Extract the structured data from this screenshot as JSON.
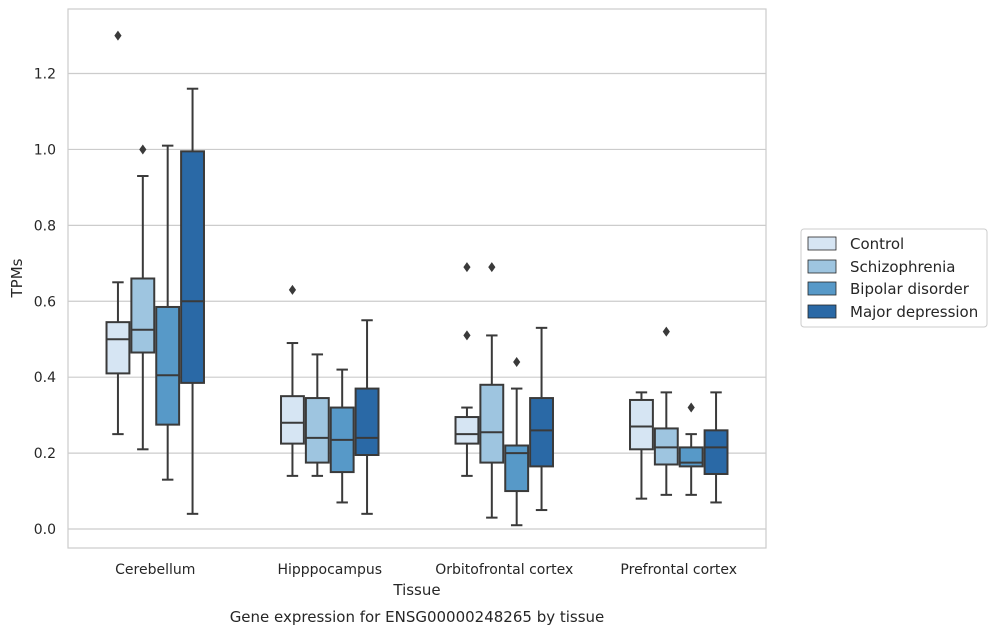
{
  "chart_data": {
    "type": "box",
    "title": "",
    "caption": "Gene expression for ENSG00000248265 by tissue",
    "xlabel": "Tissue",
    "ylabel": "TPMs",
    "ylim": [
      -0.05,
      1.37
    ],
    "yticks": [
      0.0,
      0.2,
      0.4,
      0.6,
      0.8,
      1.0,
      1.2
    ],
    "ytick_labels": [
      "0.0",
      "0.2",
      "0.4",
      "0.6",
      "0.8",
      "1.0",
      "1.2"
    ],
    "grid": true,
    "legend_position": "right, outside plot",
    "categories": [
      "Cerebellum",
      "Hipppocampus",
      "Orbitofrontal cortex",
      "Prefrontal cortex"
    ],
    "series": [
      {
        "name": "Control",
        "color": "#d6e5f3",
        "boxes": [
          {
            "whisker_low": 0.25,
            "q1": 0.41,
            "median": 0.5,
            "q3": 0.545,
            "whisker_high": 0.65,
            "outliers": [
              1.3
            ]
          },
          {
            "whisker_low": 0.14,
            "q1": 0.225,
            "median": 0.28,
            "q3": 0.35,
            "whisker_high": 0.49,
            "outliers": [
              0.63
            ]
          },
          {
            "whisker_low": 0.14,
            "q1": 0.225,
            "median": 0.25,
            "q3": 0.295,
            "whisker_high": 0.32,
            "outliers": [
              0.51,
              0.69
            ]
          },
          {
            "whisker_low": 0.08,
            "q1": 0.21,
            "median": 0.27,
            "q3": 0.34,
            "whisker_high": 0.36,
            "outliers": []
          }
        ]
      },
      {
        "name": "Schizophrenia",
        "color": "#9ec5e0",
        "boxes": [
          {
            "whisker_low": 0.21,
            "q1": 0.465,
            "median": 0.525,
            "q3": 0.66,
            "whisker_high": 0.93,
            "outliers": [
              1.0
            ]
          },
          {
            "whisker_low": 0.14,
            "q1": 0.175,
            "median": 0.24,
            "q3": 0.345,
            "whisker_high": 0.46,
            "outliers": []
          },
          {
            "whisker_low": 0.03,
            "q1": 0.175,
            "median": 0.255,
            "q3": 0.38,
            "whisker_high": 0.51,
            "outliers": [
              0.69
            ]
          },
          {
            "whisker_low": 0.09,
            "q1": 0.17,
            "median": 0.215,
            "q3": 0.265,
            "whisker_high": 0.36,
            "outliers": [
              0.52
            ]
          }
        ]
      },
      {
        "name": "Bipolar disorder",
        "color": "#5799c8",
        "boxes": [
          {
            "whisker_low": 0.13,
            "q1": 0.275,
            "median": 0.405,
            "q3": 0.585,
            "whisker_high": 1.01,
            "outliers": []
          },
          {
            "whisker_low": 0.07,
            "q1": 0.15,
            "median": 0.235,
            "q3": 0.32,
            "whisker_high": 0.42,
            "outliers": []
          },
          {
            "whisker_low": 0.01,
            "q1": 0.1,
            "median": 0.2,
            "q3": 0.22,
            "whisker_high": 0.37,
            "outliers": [
              0.44
            ]
          },
          {
            "whisker_low": 0.09,
            "q1": 0.165,
            "median": 0.175,
            "q3": 0.215,
            "whisker_high": 0.25,
            "outliers": [
              0.32
            ]
          }
        ]
      },
      {
        "name": "Major depression",
        "color": "#2a69a6",
        "boxes": [
          {
            "whisker_low": 0.04,
            "q1": 0.385,
            "median": 0.6,
            "q3": 0.995,
            "whisker_high": 1.16,
            "outliers": []
          },
          {
            "whisker_low": 0.04,
            "q1": 0.195,
            "median": 0.24,
            "q3": 0.37,
            "whisker_high": 0.55,
            "outliers": []
          },
          {
            "whisker_low": 0.05,
            "q1": 0.165,
            "median": 0.26,
            "q3": 0.345,
            "whisker_high": 0.53,
            "outliers": []
          },
          {
            "whisker_low": 0.07,
            "q1": 0.145,
            "median": 0.215,
            "q3": 0.26,
            "whisker_high": 0.36,
            "outliers": []
          }
        ]
      }
    ]
  }
}
